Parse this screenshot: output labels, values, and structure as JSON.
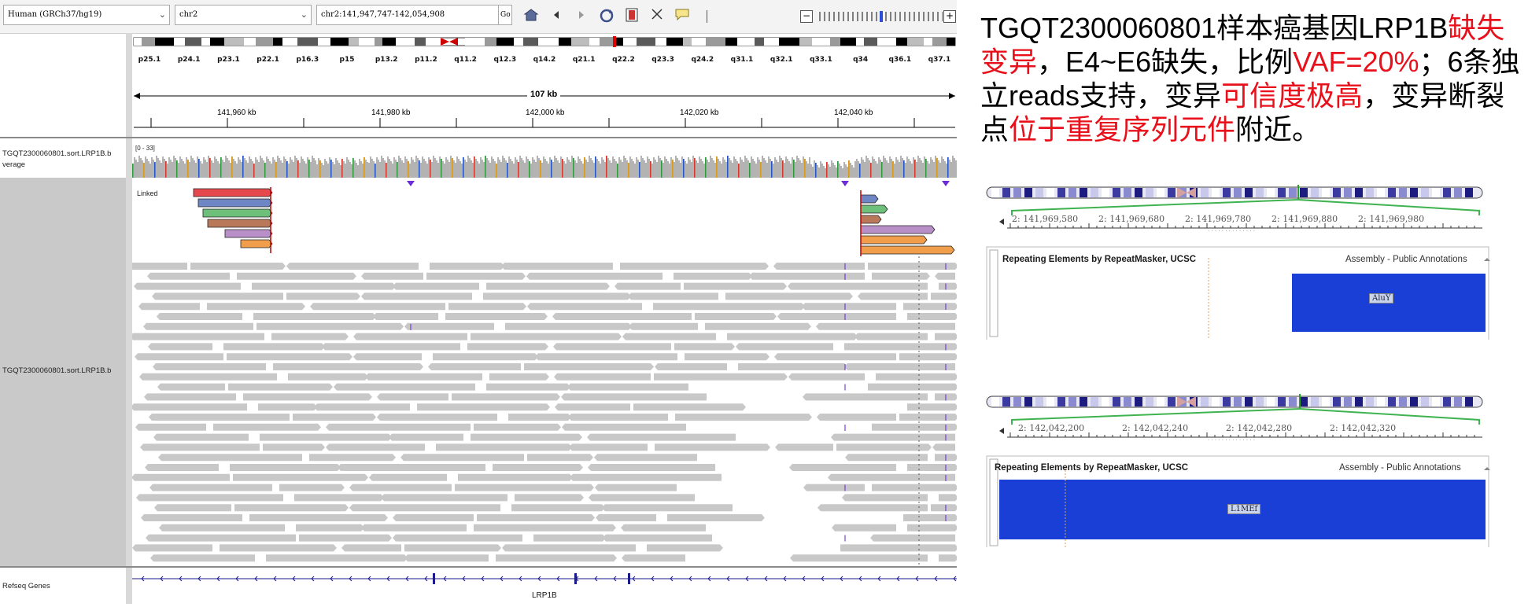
{
  "toolbar": {
    "genome": "Human (GRCh37/hg19)",
    "chromosome": "chr2",
    "locus": "chr2:141,947,747-142,054,908",
    "go_label": "Go"
  },
  "ideogram": {
    "bands": [
      "p25.1",
      "p24.1",
      "p23.1",
      "p22.1",
      "p16.3",
      "p15",
      "p13.2",
      "p11.2",
      "q11.2",
      "q12.3",
      "q14.2",
      "q21.1",
      "q22.2",
      "q23.3",
      "q24.2",
      "q31.1",
      "q32.1",
      "q33.1",
      "q34",
      "q36.1",
      "q37.1"
    ]
  },
  "ruler": {
    "span": "107 kb",
    "ticks": [
      "141,960 kb",
      "141,980 kb",
      "142,000 kb",
      "142,020 kb",
      "142,040 kb"
    ]
  },
  "tracks": {
    "coverage_label_1": "TGQT2300060801.sort.LRP1B.b",
    "coverage_label_2": "verage",
    "coverage_range": "[0 - 33]",
    "alignment_label": "TGQT2300060801.sort.LRP1B.b",
    "linked_label": "Linked",
    "genes_label": "Refseq Genes",
    "gene_name": "LRP1B"
  },
  "caption": {
    "p1": "TGQT2300060801样本癌基因LRP1B",
    "p2": "缺失变异",
    "p3": "，E4~E6缺失，比例",
    "p4": "VAF=20%",
    "p5": "；6条独立reads支持，变异",
    "p6": "可信度极高",
    "p7": "，变异断裂点",
    "p8": "位于重复序列元件",
    "p9": "附近。"
  },
  "ucsc1": {
    "ticks": [
      "2: 141,969,580",
      "2: 141,969,680",
      "2: 141,969,780",
      "2: 141,969,880",
      "2: 141,969,980"
    ],
    "track_title": "Repeating Elements by RepeatMasker, UCSC",
    "track_source": "Assembly - Public Annotations",
    "element": "AluY"
  },
  "ucsc2": {
    "ticks": [
      "2: 142,042,200",
      "2: 142,042,240",
      "2: 142,042,280",
      "2: 142,042,320"
    ],
    "track_title": "Repeating Elements by RepeatMasker, UCSC",
    "track_source": "Assembly - Public Annotations",
    "element": "L1MEf"
  },
  "colors": {
    "accent_red": "#e8111b",
    "repeat_blue": "#1a3fd6",
    "ucsc_green": "#4caf50"
  }
}
